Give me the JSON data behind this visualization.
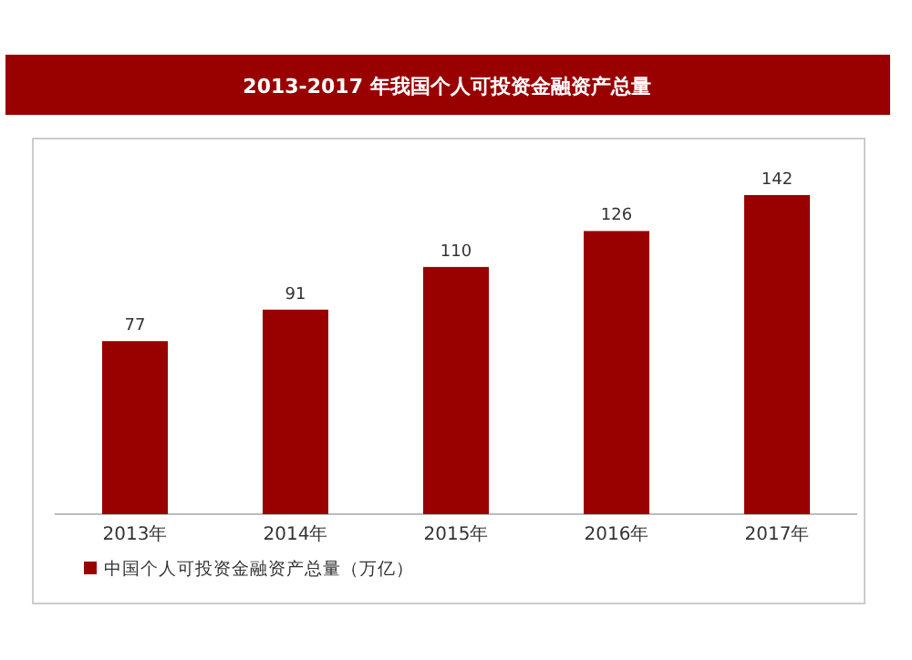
{
  "chart_data": {
    "type": "bar",
    "title": "2013-2017 年我国个人可投资金融资产总量",
    "categories": [
      "2013年",
      "2014年",
      "2015年",
      "2016年",
      "2017年"
    ],
    "series": [
      {
        "name": "中国个人可投资金融资产总量（万亿）",
        "color": "#990000",
        "values": [
          77,
          91,
          110,
          126,
          142
        ]
      }
    ],
    "data_labels": true,
    "legend": "bottom left"
  }
}
